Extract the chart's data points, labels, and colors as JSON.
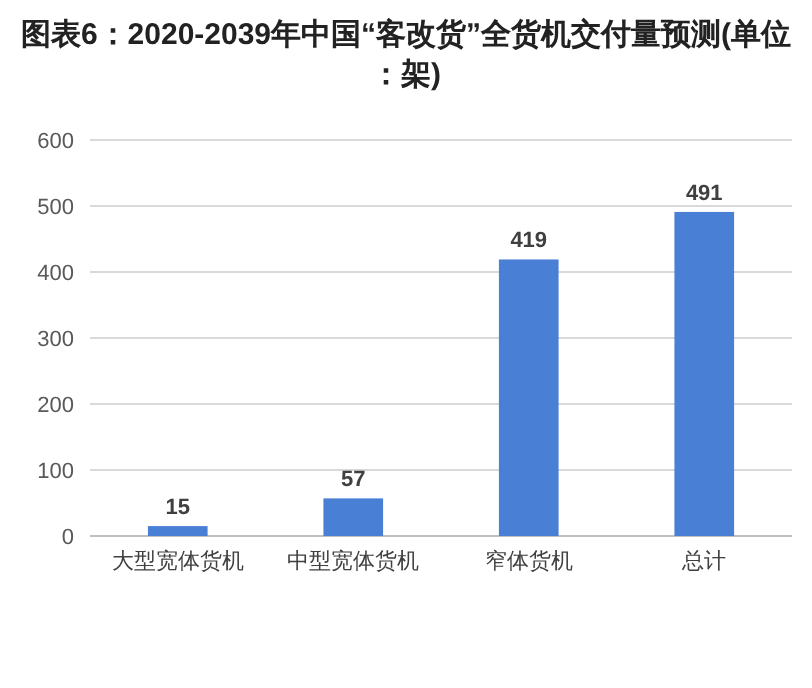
{
  "chart_data": {
    "type": "bar",
    "title": "图表6：2020-2039年中国“客改货”全货机交付量预测(单位：架)",
    "categories": [
      "大型宽体货机",
      "中型宽体货机",
      "窄体货机",
      "总计"
    ],
    "values": [
      15,
      57,
      419,
      491
    ],
    "color": "#4a7fd6",
    "ylim": [
      0,
      600
    ],
    "yticks": [
      0,
      100,
      200,
      300,
      400,
      500,
      600
    ],
    "grid": "y",
    "data_labels": true
  }
}
